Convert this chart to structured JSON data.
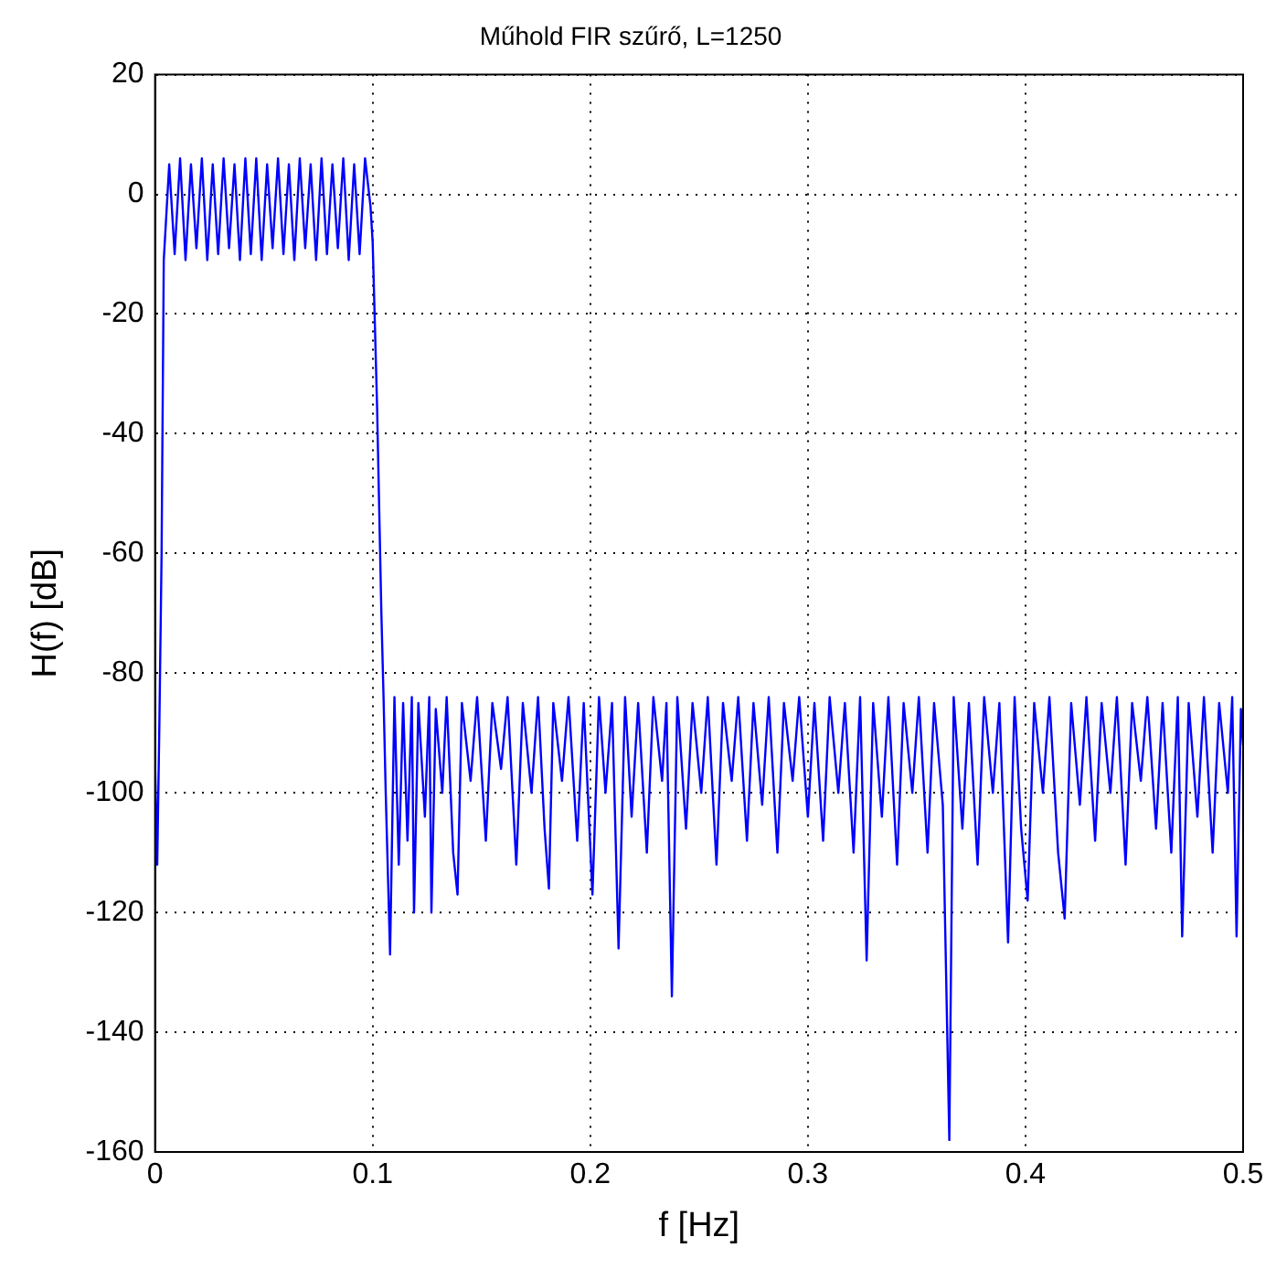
{
  "chart_data": {
    "type": "line",
    "title": "Műhold FIR szűrő, L=1250",
    "xlabel": "f [Hz]",
    "ylabel": "H(f) [dB]",
    "xlim": [
      0,
      0.5
    ],
    "xticks": [
      0,
      0.1,
      0.2,
      0.3,
      0.4,
      0.5
    ],
    "ylim": [
      -160,
      20
    ],
    "yticks": [
      -160,
      -140,
      -120,
      -100,
      -80,
      -60,
      -40,
      -20,
      0,
      20
    ],
    "grid": true,
    "legend": false,
    "marker": "none",
    "line_style": "solid",
    "series": [
      {
        "color": "#0000ff",
        "x": [
          0,
          0.001,
          0.002,
          0.003,
          0.004,
          0.0065,
          0.009,
          0.0115,
          0.014,
          0.0165,
          0.019,
          0.0215,
          0.024,
          0.0265,
          0.029,
          0.0315,
          0.034,
          0.0365,
          0.039,
          0.0415,
          0.044,
          0.0465,
          0.049,
          0.0515,
          0.054,
          0.0565,
          0.059,
          0.0615,
          0.064,
          0.0665,
          0.069,
          0.0715,
          0.074,
          0.0765,
          0.079,
          0.0815,
          0.084,
          0.0865,
          0.089,
          0.0915,
          0.094,
          0.0965,
          0.099,
          0.1,
          0.102,
          0.104,
          0.105,
          0.106,
          0.108,
          0.11,
          0.112,
          0.114,
          0.116,
          0.118,
          0.119,
          0.121,
          0.124,
          0.126,
          0.127,
          0.129,
          0.132,
          0.134,
          0.137,
          0.139,
          0.141,
          0.145,
          0.148,
          0.152,
          0.155,
          0.159,
          0.162,
          0.166,
          0.169,
          0.173,
          0.176,
          0.179,
          0.181,
          0.183,
          0.187,
          0.19,
          0.194,
          0.197,
          0.201,
          0.204,
          0.207,
          0.21,
          0.213,
          0.216,
          0.219,
          0.222,
          0.226,
          0.229,
          0.233,
          0.235,
          0.2375,
          0.24,
          0.244,
          0.247,
          0.251,
          0.254,
          0.258,
          0.261,
          0.265,
          0.268,
          0.272,
          0.275,
          0.279,
          0.282,
          0.286,
          0.289,
          0.293,
          0.296,
          0.3,
          0.303,
          0.307,
          0.31,
          0.314,
          0.317,
          0.321,
          0.324,
          0.327,
          0.33,
          0.334,
          0.337,
          0.341,
          0.344,
          0.348,
          0.351,
          0.355,
          0.358,
          0.362,
          0.365,
          0.367,
          0.371,
          0.374,
          0.378,
          0.381,
          0.385,
          0.388,
          0.392,
          0.395,
          0.398,
          0.401,
          0.404,
          0.408,
          0.411,
          0.415,
          0.418,
          0.421,
          0.425,
          0.428,
          0.432,
          0.435,
          0.439,
          0.442,
          0.446,
          0.449,
          0.453,
          0.456,
          0.46,
          0.463,
          0.467,
          0.47,
          0.472,
          0.475,
          0.479,
          0.482,
          0.486,
          0.489,
          0.493,
          0.495,
          0.497,
          0.499,
          0.5
        ],
        "values": [
          -95,
          -112,
          -88,
          -60,
          -11,
          5,
          -10,
          6,
          -11,
          5,
          -9,
          6,
          -11,
          5,
          -10,
          6,
          -9,
          5,
          -11,
          6,
          -10,
          6,
          -11,
          5,
          -9,
          6,
          -10,
          5,
          -11,
          6,
          -9,
          5,
          -11,
          6,
          -10,
          5,
          -9,
          6,
          -11,
          5,
          -10,
          6,
          -2,
          -8,
          -35,
          -70,
          -84,
          -100,
          -127,
          -84,
          -112,
          -85,
          -108,
          -84,
          -120,
          -85,
          -104,
          -84,
          -120,
          -86,
          -100,
          -84,
          -110,
          -117,
          -85,
          -98,
          -84,
          -108,
          -85,
          -96,
          -84,
          -112,
          -85,
          -100,
          -84,
          -106,
          -116,
          -85,
          -98,
          -84,
          -108,
          -85,
          -117,
          -84,
          -100,
          -85,
          -126,
          -84,
          -104,
          -85,
          -110,
          -84,
          -98,
          -85,
          -134,
          -84,
          -106,
          -85,
          -100,
          -84,
          -112,
          -85,
          -98,
          -84,
          -108,
          -85,
          -102,
          -84,
          -110,
          -85,
          -98,
          -84,
          -104,
          -85,
          -108,
          -84,
          -100,
          -85,
          -110,
          -84,
          -128,
          -85,
          -104,
          -84,
          -112,
          -85,
          -100,
          -84,
          -110,
          -85,
          -102,
          -158,
          -84,
          -106,
          -85,
          -112,
          -84,
          -100,
          -85,
          -125,
          -84,
          -106,
          -118,
          -85,
          -100,
          -84,
          -110,
          -121,
          -85,
          -102,
          -84,
          -108,
          -85,
          -100,
          -84,
          -112,
          -85,
          -98,
          -84,
          -106,
          -85,
          -110,
          -84,
          -124,
          -85,
          -104,
          -84,
          -110,
          -85,
          -100,
          -84,
          -124,
          -86,
          -92
        ]
      }
    ]
  }
}
